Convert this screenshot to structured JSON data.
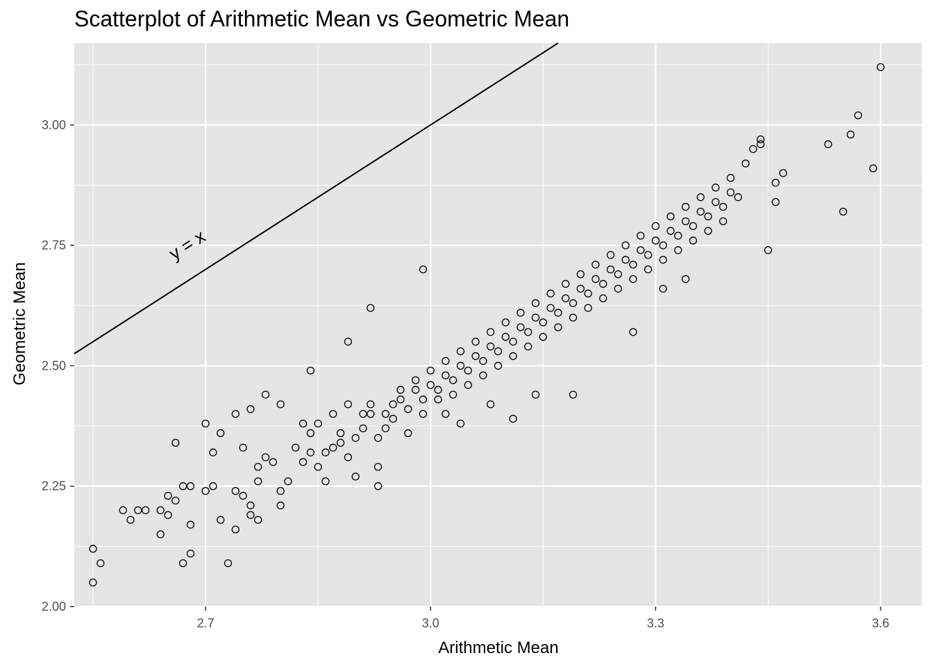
{
  "chart_data": {
    "type": "scatter",
    "title": "Scatterplot of Arithmetic Mean vs Geometric Mean",
    "xlabel": "Arithmetic Mean",
    "ylabel": "Geometric Mean",
    "xlim": [
      2.525,
      3.655
    ],
    "ylim": [
      2.0,
      3.17
    ],
    "x_ticks": [
      2.7,
      3.0,
      3.3,
      3.6
    ],
    "x_tick_labels": [
      "2.7",
      "3.0",
      "3.3",
      "3.6"
    ],
    "y_ticks": [
      2.0,
      2.25,
      2.5,
      2.75,
      3.0
    ],
    "y_tick_labels": [
      "2.00",
      "2.25",
      "2.50",
      "2.75",
      "3.00"
    ],
    "grid": true,
    "panel_background": "#e5e5e5",
    "grid_color": "#ffffff",
    "point_color": "#000000",
    "marker": "open-circle",
    "reference_line": {
      "slope": 1,
      "intercept": 0,
      "label": "y = x",
      "label_at": [
        2.68,
        2.74
      ]
    },
    "points": [
      [
        2.55,
        2.05
      ],
      [
        2.55,
        2.12
      ],
      [
        2.56,
        2.09
      ],
      [
        2.59,
        2.2
      ],
      [
        2.6,
        2.18
      ],
      [
        2.61,
        2.2
      ],
      [
        2.62,
        2.2
      ],
      [
        2.64,
        2.15
      ],
      [
        2.64,
        2.2
      ],
      [
        2.65,
        2.23
      ],
      [
        2.65,
        2.19
      ],
      [
        2.66,
        2.22
      ],
      [
        2.67,
        2.25
      ],
      [
        2.67,
        2.09
      ],
      [
        2.68,
        2.17
      ],
      [
        2.68,
        2.25
      ],
      [
        2.68,
        2.11
      ],
      [
        2.7,
        2.24
      ],
      [
        2.71,
        2.25
      ],
      [
        2.72,
        2.18
      ],
      [
        2.73,
        2.09
      ],
      [
        2.74,
        2.16
      ],
      [
        2.74,
        2.24
      ],
      [
        2.75,
        2.33
      ],
      [
        2.75,
        2.23
      ],
      [
        2.76,
        2.19
      ],
      [
        2.76,
        2.21
      ],
      [
        2.77,
        2.26
      ],
      [
        2.77,
        2.29
      ],
      [
        2.77,
        2.18
      ],
      [
        2.78,
        2.31
      ],
      [
        2.79,
        2.3
      ],
      [
        2.8,
        2.21
      ],
      [
        2.8,
        2.24
      ],
      [
        2.81,
        2.26
      ],
      [
        2.82,
        2.33
      ],
      [
        2.83,
        2.3
      ],
      [
        2.83,
        2.38
      ],
      [
        2.84,
        2.32
      ],
      [
        2.84,
        2.36
      ],
      [
        2.85,
        2.38
      ],
      [
        2.85,
        2.29
      ],
      [
        2.86,
        2.26
      ],
      [
        2.86,
        2.32
      ],
      [
        2.87,
        2.33
      ],
      [
        2.87,
        2.4
      ],
      [
        2.88,
        2.36
      ],
      [
        2.88,
        2.34
      ],
      [
        2.89,
        2.42
      ],
      [
        2.89,
        2.31
      ],
      [
        2.9,
        2.27
      ],
      [
        2.9,
        2.35
      ],
      [
        2.91,
        2.4
      ],
      [
        2.91,
        2.37
      ],
      [
        2.92,
        2.4
      ],
      [
        2.92,
        2.42
      ],
      [
        2.93,
        2.35
      ],
      [
        2.93,
        2.25
      ],
      [
        2.93,
        2.29
      ],
      [
        2.94,
        2.4
      ],
      [
        2.94,
        2.37
      ],
      [
        2.95,
        2.42
      ],
      [
        2.95,
        2.39
      ],
      [
        2.96,
        2.43
      ],
      [
        2.96,
        2.45
      ],
      [
        2.97,
        2.41
      ],
      [
        2.97,
        2.36
      ],
      [
        2.98,
        2.45
      ],
      [
        2.98,
        2.47
      ],
      [
        2.99,
        2.43
      ],
      [
        2.99,
        2.4
      ],
      [
        3.0,
        2.46
      ],
      [
        3.0,
        2.49
      ],
      [
        3.01,
        2.45
      ],
      [
        3.01,
        2.43
      ],
      [
        3.02,
        2.48
      ],
      [
        3.02,
        2.51
      ],
      [
        3.03,
        2.47
      ],
      [
        3.03,
        2.44
      ],
      [
        3.04,
        2.5
      ],
      [
        3.04,
        2.53
      ],
      [
        3.05,
        2.49
      ],
      [
        3.05,
        2.46
      ],
      [
        3.06,
        2.52
      ],
      [
        3.06,
        2.55
      ],
      [
        3.07,
        2.51
      ],
      [
        3.07,
        2.48
      ],
      [
        3.08,
        2.54
      ],
      [
        3.08,
        2.57
      ],
      [
        3.09,
        2.53
      ],
      [
        3.09,
        2.5
      ],
      [
        3.1,
        2.56
      ],
      [
        3.1,
        2.59
      ],
      [
        3.11,
        2.55
      ],
      [
        3.11,
        2.52
      ],
      [
        3.12,
        2.58
      ],
      [
        3.12,
        2.61
      ],
      [
        3.13,
        2.57
      ],
      [
        3.13,
        2.54
      ],
      [
        3.14,
        2.6
      ],
      [
        3.14,
        2.63
      ],
      [
        3.15,
        2.59
      ],
      [
        3.15,
        2.56
      ],
      [
        3.16,
        2.62
      ],
      [
        3.16,
        2.65
      ],
      [
        3.17,
        2.61
      ],
      [
        3.17,
        2.58
      ],
      [
        3.18,
        2.64
      ],
      [
        3.18,
        2.67
      ],
      [
        3.19,
        2.63
      ],
      [
        3.19,
        2.6
      ],
      [
        3.2,
        2.66
      ],
      [
        3.2,
        2.69
      ],
      [
        3.21,
        2.65
      ],
      [
        3.21,
        2.62
      ],
      [
        3.22,
        2.68
      ],
      [
        3.22,
        2.71
      ],
      [
        3.23,
        2.67
      ],
      [
        3.23,
        2.64
      ],
      [
        3.24,
        2.7
      ],
      [
        3.24,
        2.73
      ],
      [
        3.25,
        2.69
      ],
      [
        3.25,
        2.66
      ],
      [
        3.26,
        2.72
      ],
      [
        3.26,
        2.75
      ],
      [
        3.27,
        2.71
      ],
      [
        3.27,
        2.68
      ],
      [
        3.28,
        2.74
      ],
      [
        3.28,
        2.77
      ],
      [
        3.29,
        2.73
      ],
      [
        3.29,
        2.7
      ],
      [
        3.3,
        2.76
      ],
      [
        3.3,
        2.79
      ],
      [
        3.31,
        2.75
      ],
      [
        3.31,
        2.72
      ],
      [
        3.32,
        2.78
      ],
      [
        3.32,
        2.81
      ],
      [
        3.33,
        2.77
      ],
      [
        3.33,
        2.74
      ],
      [
        3.34,
        2.8
      ],
      [
        3.34,
        2.83
      ],
      [
        3.35,
        2.79
      ],
      [
        3.35,
        2.76
      ],
      [
        3.36,
        2.82
      ],
      [
        3.36,
        2.85
      ],
      [
        3.37,
        2.81
      ],
      [
        3.37,
        2.78
      ],
      [
        3.38,
        2.84
      ],
      [
        3.38,
        2.87
      ],
      [
        3.39,
        2.83
      ],
      [
        3.39,
        2.8
      ],
      [
        3.4,
        2.86
      ],
      [
        3.4,
        2.89
      ],
      [
        3.41,
        2.85
      ],
      [
        3.42,
        2.92
      ],
      [
        3.43,
        2.95
      ],
      [
        3.44,
        2.96
      ],
      [
        3.44,
        2.97
      ],
      [
        3.45,
        2.74
      ],
      [
        3.46,
        2.88
      ],
      [
        3.46,
        2.84
      ],
      [
        3.47,
        2.9
      ],
      [
        3.53,
        2.96
      ],
      [
        3.55,
        2.82
      ],
      [
        3.56,
        2.98
      ],
      [
        3.57,
        3.02
      ],
      [
        3.59,
        2.91
      ],
      [
        3.6,
        3.12
      ],
      [
        3.31,
        2.66
      ],
      [
        3.27,
        2.57
      ],
      [
        3.34,
        2.68
      ],
      [
        3.19,
        2.44
      ],
      [
        3.14,
        2.44
      ],
      [
        3.11,
        2.39
      ],
      [
        3.08,
        2.42
      ],
      [
        3.04,
        2.38
      ],
      [
        3.02,
        2.4
      ],
      [
        2.99,
        2.7
      ],
      [
        2.92,
        2.62
      ],
      [
        2.84,
        2.49
      ],
      [
        2.89,
        2.55
      ],
      [
        2.78,
        2.44
      ],
      [
        2.7,
        2.38
      ],
      [
        2.72,
        2.36
      ],
      [
        2.74,
        2.4
      ],
      [
        2.76,
        2.41
      ],
      [
        2.8,
        2.42
      ],
      [
        2.66,
        2.34
      ],
      [
        2.71,
        2.32
      ]
    ]
  }
}
